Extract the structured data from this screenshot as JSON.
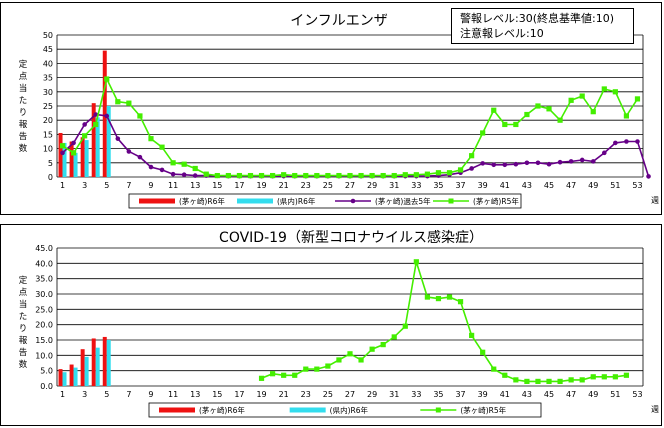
{
  "alert": {
    "warning": "警報レベル:30(終息基準値:10)",
    "caution": "注意報レベル:10"
  },
  "chart_data": [
    {
      "type": "bar",
      "title": "インフルエンザ",
      "ylabel": "定点当たり報告数",
      "xlabel": "週",
      "ylim": [
        0,
        50
      ],
      "yticks": [
        "0",
        "5",
        "10",
        "15",
        "20",
        "25",
        "30",
        "35",
        "40",
        "45",
        "50"
      ],
      "xticks": [
        "1",
        "3",
        "5",
        "7",
        "9",
        "11",
        "13",
        "15",
        "17",
        "19",
        "21",
        "23",
        "25",
        "27",
        "29",
        "31",
        "33",
        "35",
        "37",
        "39",
        "41",
        "43",
        "45",
        "47",
        "49",
        "51",
        "53"
      ],
      "series": [
        {
          "name": "(茅ヶ崎)R6年",
          "kind": "bar",
          "color": "#ee1111",
          "values": [
            15.5,
            12.5,
            14.0,
            26.0,
            44.5
          ]
        },
        {
          "name": "(県内)R6年",
          "kind": "bar",
          "color": "#33ddee",
          "values": [
            12.0,
            8.5,
            13.0,
            21.0,
            25.0
          ]
        },
        {
          "name": "(茅ヶ崎)過去5年",
          "kind": "line",
          "color": "#660088",
          "values": [
            8.5,
            12.0,
            18.5,
            22.0,
            21.5,
            13.5,
            9.0,
            7.0,
            3.5,
            2.5,
            1.0,
            0.8,
            0.5,
            0.5,
            0.4,
            0.3,
            0.3,
            0.3,
            0.3,
            0.3,
            0.3,
            0.3,
            0.3,
            0.3,
            0.3,
            0.3,
            0.3,
            0.3,
            0.3,
            0.3,
            0.3,
            0.3,
            0.3,
            0.3,
            0.5,
            0.8,
            1.5,
            3.0,
            4.8,
            4.3,
            4.3,
            4.5,
            5.0,
            5.0,
            4.5,
            5.2,
            5.5,
            6.0,
            5.5,
            8.5,
            12.0,
            12.5,
            12.5,
            0.2
          ]
        },
        {
          "name": "(茅ヶ崎)R5年",
          "kind": "line",
          "color": "#44ee00",
          "values": [
            11.0,
            8.5,
            14.5,
            18.5,
            34.5,
            26.5,
            26.0,
            21.5,
            13.5,
            10.5,
            5.0,
            4.5,
            3.0,
            1.0,
            0.5,
            0.5,
            0.5,
            0.5,
            0.5,
            0.5,
            0.8,
            0.5,
            0.5,
            0.5,
            0.5,
            0.5,
            0.5,
            0.5,
            0.5,
            0.5,
            0.5,
            0.8,
            0.8,
            1.0,
            1.5,
            1.5,
            2.5,
            7.5,
            15.5,
            23.5,
            18.5,
            18.5,
            22.0,
            25.0,
            24.0,
            20.0,
            27.0,
            28.5,
            23.0,
            31.0,
            30.0,
            21.5,
            27.5
          ]
        }
      ]
    },
    {
      "type": "bar",
      "title": "COVID-19（新型コロナウイルス感染症）",
      "ylabel": "定点当たり報告数",
      "xlabel": "週",
      "ylim": [
        0,
        45
      ],
      "yticks": [
        "0.0",
        "5.0",
        "10.0",
        "15.0",
        "20.0",
        "25.0",
        "30.0",
        "35.0",
        "40.0",
        "45.0"
      ],
      "xticks": [
        "1",
        "3",
        "5",
        "7",
        "9",
        "11",
        "13",
        "15",
        "17",
        "19",
        "21",
        "23",
        "25",
        "27",
        "29",
        "31",
        "33",
        "35",
        "37",
        "39",
        "41",
        "43",
        "45",
        "47",
        "49",
        "51",
        "53"
      ],
      "series": [
        {
          "name": "(茅ヶ崎)R6年",
          "kind": "bar",
          "color": "#ee1111",
          "values": [
            5.5,
            7.0,
            12.0,
            15.5,
            16.0
          ]
        },
        {
          "name": "(県内)R6年",
          "kind": "bar",
          "color": "#33ddee",
          "values": [
            4.5,
            6.0,
            9.5,
            12.5,
            15.0
          ]
        },
        {
          "name": "(茅ヶ崎)R5年",
          "kind": "line",
          "color": "#44ee00",
          "start_week": 19,
          "values": [
            2.5,
            4.0,
            3.5,
            3.5,
            5.5,
            5.5,
            6.5,
            8.5,
            10.5,
            8.5,
            12.0,
            13.5,
            16.0,
            19.5,
            40.5,
            29.0,
            28.5,
            29.0,
            27.5,
            16.5,
            11.0,
            5.5,
            3.5,
            2.0,
            1.5,
            1.5,
            1.5,
            1.5,
            2.0,
            2.0,
            3.0,
            3.0,
            3.0,
            3.5
          ]
        }
      ]
    }
  ]
}
